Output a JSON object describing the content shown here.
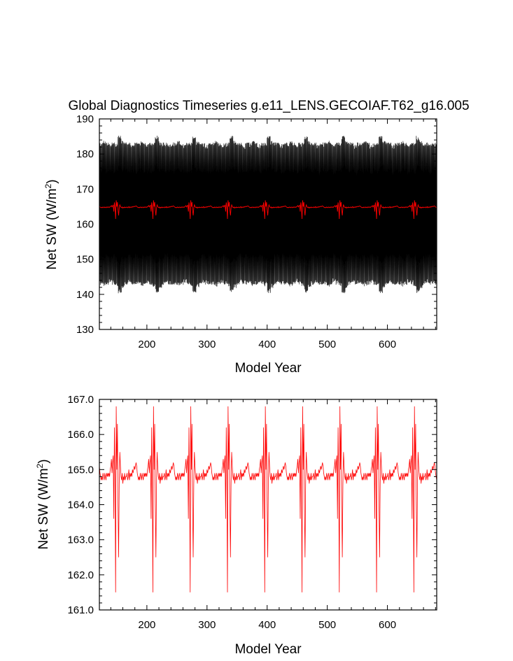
{
  "chart_data": [
    {
      "type": "line",
      "title": "Global Diagnostics Timeseries g.e11_LENS.GECOIAF.T62_g16.005",
      "xlabel": "Model Year",
      "ylabel": "Net SW (W/m",
      "ylabel_sup": "2",
      "ylabel_close": ")",
      "xlim": [
        121,
        682
      ],
      "ylim": [
        130,
        190
      ],
      "x_ticks": [
        200,
        300,
        400,
        500,
        600
      ],
      "y_ticks": [
        130,
        140,
        150,
        160,
        170,
        180,
        190
      ],
      "y_tick_labels": [
        "130",
        "140",
        "150",
        "160",
        "170",
        "180",
        "190"
      ],
      "grid": false,
      "cycle_years": 62,
      "first_cycle_start": 121,
      "series": [
        {
          "color": "#000000",
          "style": "monthly",
          "envelope_min": [
            142,
            141.5,
            142,
            142.5,
            142,
            141.5,
            139.5,
            141,
            142,
            142.5,
            142,
            142
          ],
          "envelope_max": [
            184,
            184.5,
            184,
            183.5,
            184,
            184,
            186,
            184.5,
            184,
            184,
            183.5,
            184
          ]
        },
        {
          "color": "#ff0000",
          "style": "annual",
          "cycle_profile": [
            165.1,
            164.9,
            164.8,
            164.7,
            164.8,
            164.7,
            164.9,
            164.8,
            164.7,
            164.9,
            164.8,
            164.7,
            164.9,
            164.8,
            164.9,
            164.8,
            164.9,
            164.8,
            165.0,
            165.1,
            165.3,
            164.9,
            165.2,
            165.4,
            163.6,
            166.2,
            164.8,
            161.5,
            166.8,
            165.0,
            166.3,
            164.0,
            162.5,
            164.6,
            165.5,
            165.1,
            164.8,
            164.7,
            164.9,
            164.6,
            164.8,
            164.7,
            164.9,
            164.7,
            164.8,
            164.8,
            164.9,
            164.7,
            164.8,
            165.0,
            164.7,
            164.9,
            164.8,
            164.9,
            164.8,
            165.0,
            164.9,
            165.0,
            165.1,
            165.0,
            165.1,
            165.2
          ]
        }
      ]
    },
    {
      "type": "line",
      "title": "",
      "xlabel": "Model Year",
      "ylabel": "Net SW (W/m",
      "ylabel_sup": "2",
      "ylabel_close": ")",
      "xlim": [
        121,
        682
      ],
      "ylim": [
        161,
        167
      ],
      "x_ticks": [
        200,
        300,
        400,
        500,
        600
      ],
      "y_ticks": [
        161,
        162,
        163,
        164,
        165,
        166,
        167
      ],
      "y_tick_labels": [
        "161.0",
        "162.0",
        "163.0",
        "164.0",
        "165.0",
        "166.0",
        "167.0"
      ],
      "grid": false,
      "cycle_years": 62,
      "first_cycle_start": 121,
      "series": [
        {
          "color": "#ff0000",
          "style": "annual",
          "cycle_profile": [
            165.1,
            164.9,
            164.8,
            164.7,
            164.8,
            164.7,
            164.9,
            164.8,
            164.7,
            164.9,
            164.8,
            164.7,
            164.9,
            164.8,
            164.9,
            164.8,
            164.9,
            164.8,
            165.0,
            165.1,
            165.3,
            164.9,
            165.2,
            165.4,
            163.6,
            166.2,
            164.8,
            161.5,
            166.8,
            165.0,
            166.3,
            164.0,
            162.5,
            164.6,
            165.5,
            165.1,
            164.8,
            164.7,
            164.9,
            164.6,
            164.8,
            164.7,
            164.9,
            164.7,
            164.8,
            164.8,
            164.9,
            164.7,
            164.8,
            165.0,
            164.7,
            164.9,
            164.8,
            164.9,
            164.8,
            165.0,
            164.9,
            165.0,
            165.1,
            165.0,
            165.1,
            165.2
          ]
        }
      ]
    }
  ]
}
